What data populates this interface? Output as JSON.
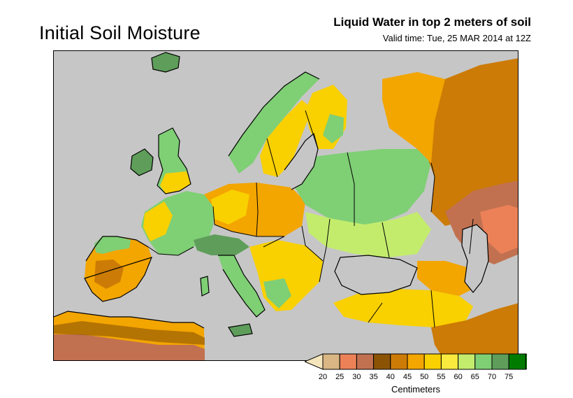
{
  "header": {
    "main_title": "Initial Soil Moisture",
    "product_title": "Liquid Water in top 2 meters of soil",
    "valid_time": "Valid time: Tue, 25 MAR 2014 at 12Z"
  },
  "legend": {
    "unit": "Centimeters",
    "ticks": [
      "20",
      "25",
      "30",
      "35",
      "40",
      "45",
      "50",
      "55",
      "60",
      "65",
      "70",
      "75"
    ],
    "colors": [
      "#f5e5bd",
      "#d9b684",
      "#ec8158",
      "#c17150",
      "#8b5405",
      "#cc7b06",
      "#f3a500",
      "#f9d000",
      "#fbea3e",
      "#c3ec6d",
      "#7fcf75",
      "#5e9e5a",
      "#027c00",
      "#027c00"
    ]
  },
  "map": {
    "region": "Europe",
    "sea_color": "#c6c6c6",
    "border_color": "#000000"
  }
}
